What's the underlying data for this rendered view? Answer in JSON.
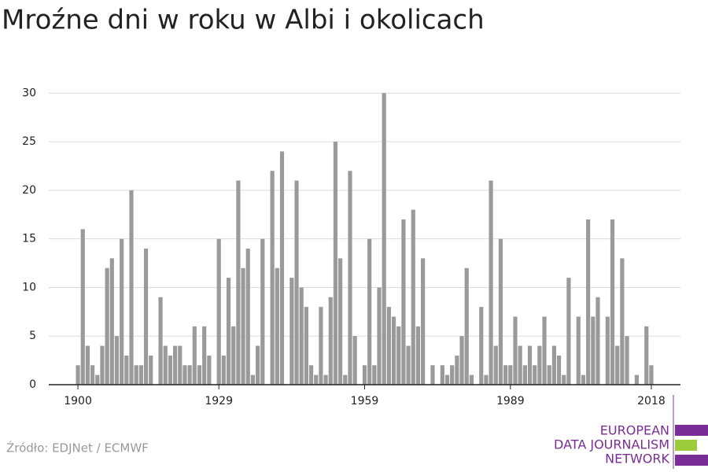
{
  "chart_data": {
    "type": "bar",
    "title": "Mroźne dni w roku w Albi i okolicach",
    "x": [
      1900,
      1901,
      1902,
      1903,
      1904,
      1905,
      1906,
      1907,
      1908,
      1909,
      1910,
      1911,
      1912,
      1913,
      1914,
      1915,
      1916,
      1917,
      1918,
      1919,
      1920,
      1921,
      1922,
      1923,
      1924,
      1925,
      1926,
      1927,
      1928,
      1929,
      1930,
      1931,
      1932,
      1933,
      1934,
      1935,
      1936,
      1937,
      1938,
      1939,
      1940,
      1941,
      1942,
      1943,
      1944,
      1945,
      1946,
      1947,
      1948,
      1949,
      1950,
      1951,
      1952,
      1953,
      1954,
      1955,
      1956,
      1957,
      1958,
      1959,
      1960,
      1961,
      1962,
      1963,
      1964,
      1965,
      1966,
      1967,
      1968,
      1969,
      1970,
      1971,
      1972,
      1973,
      1974,
      1975,
      1976,
      1977,
      1978,
      1979,
      1980,
      1981,
      1982,
      1983,
      1984,
      1985,
      1986,
      1987,
      1988,
      1989,
      1990,
      1991,
      1992,
      1993,
      1994,
      1995,
      1996,
      1997,
      1998,
      1999,
      2000,
      2001,
      2002,
      2003,
      2004,
      2005,
      2006,
      2007,
      2008,
      2009,
      2010,
      2011,
      2012,
      2013,
      2014,
      2015,
      2016,
      2017,
      2018
    ],
    "values": [
      2,
      16,
      4,
      2,
      1,
      4,
      12,
      13,
      5,
      15,
      3,
      20,
      2,
      2,
      14,
      3,
      0,
      9,
      4,
      3,
      4,
      4,
      2,
      2,
      6,
      2,
      6,
      3,
      0,
      15,
      3,
      11,
      6,
      21,
      12,
      14,
      1,
      4,
      15,
      0,
      22,
      12,
      24,
      0,
      11,
      21,
      10,
      8,
      2,
      1,
      8,
      1,
      9,
      25,
      13,
      1,
      22,
      5,
      0,
      2,
      15,
      2,
      10,
      30,
      8,
      7,
      6,
      17,
      4,
      18,
      6,
      13,
      0,
      2,
      0,
      2,
      1,
      2,
      3,
      5,
      12,
      1,
      0,
      8,
      1,
      21,
      4,
      15,
      2,
      2,
      7,
      4,
      2,
      4,
      2,
      4,
      7,
      2,
      4,
      3,
      1,
      11,
      0,
      7,
      1,
      17,
      7,
      9,
      0,
      7,
      17,
      4,
      13,
      5,
      0,
      1,
      0,
      6,
      2
    ],
    "color": "#9a9a9a",
    "xlim": [
      1894,
      2024
    ],
    "xticks": [
      1900,
      1929,
      1959,
      1989,
      2018
    ],
    "ylim": [
      0,
      31
    ],
    "yticks": [
      0,
      5,
      10,
      15,
      20,
      25,
      30
    ],
    "grid": true,
    "source": "Źródło: EDJNet / ECMWF",
    "logo": [
      "EUROPEAN",
      "DATA JOURNALISM",
      "NETWORK"
    ]
  }
}
